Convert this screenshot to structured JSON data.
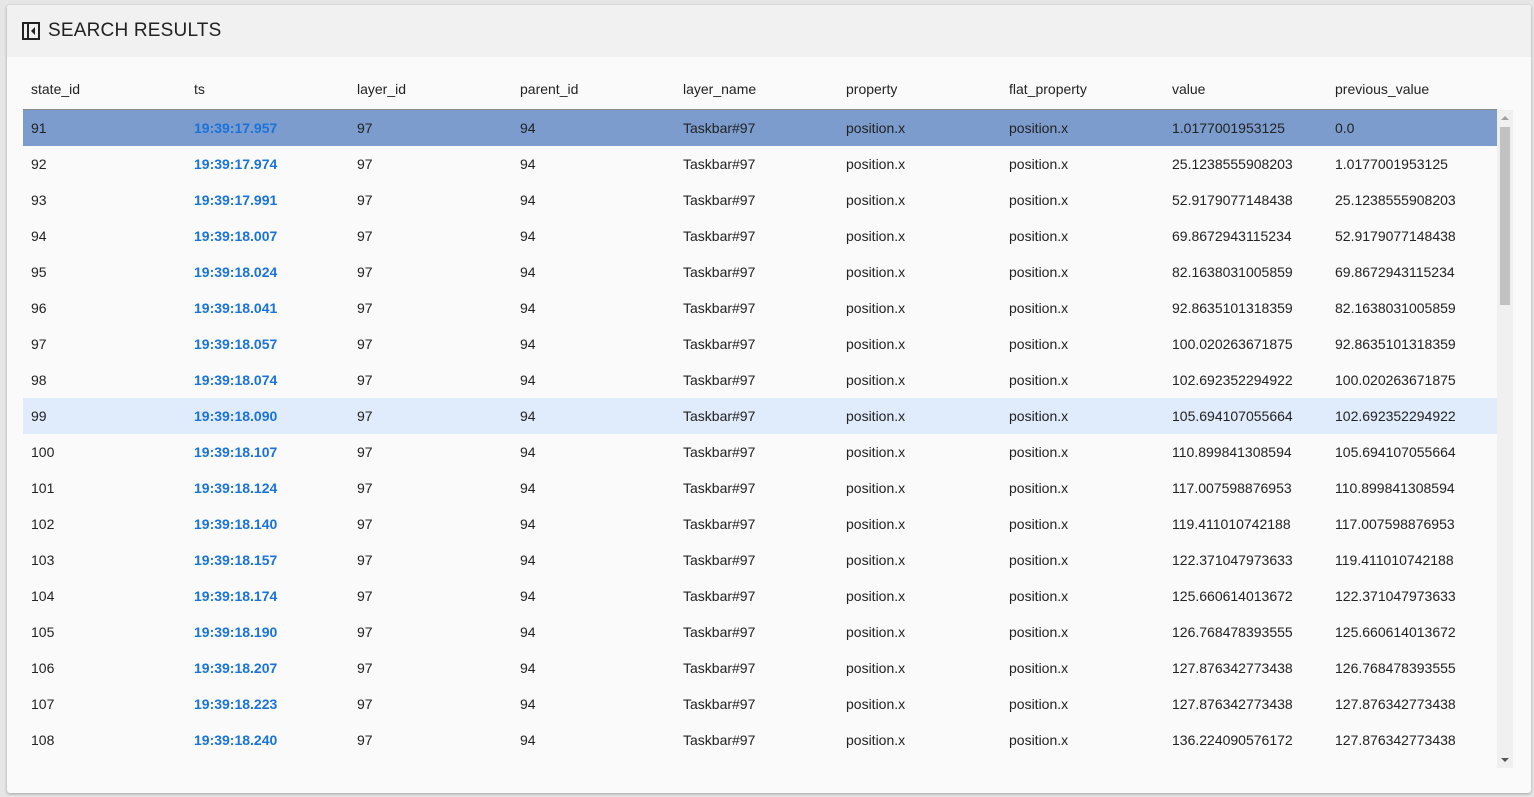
{
  "panel": {
    "title": "SEARCH RESULTS",
    "icon": "collapse-panel-icon"
  },
  "colors": {
    "selected_row": "#7b9ccd",
    "hover_row": "#e0ebfc",
    "link": "#1a73d9"
  },
  "columns": [
    "state_id",
    "ts",
    "layer_id",
    "parent_id",
    "layer_name",
    "property",
    "flat_property",
    "value",
    "previous_value"
  ],
  "selected_index": 0,
  "hover_index": 8,
  "rows": [
    [
      "91",
      "19:39:17.957",
      "97",
      "94",
      "Taskbar#97",
      "position.x",
      "position.x",
      "1.0177001953125",
      "0.0"
    ],
    [
      "92",
      "19:39:17.974",
      "97",
      "94",
      "Taskbar#97",
      "position.x",
      "position.x",
      "25.1238555908203",
      "1.0177001953125"
    ],
    [
      "93",
      "19:39:17.991",
      "97",
      "94",
      "Taskbar#97",
      "position.x",
      "position.x",
      "52.9179077148438",
      "25.1238555908203"
    ],
    [
      "94",
      "19:39:18.007",
      "97",
      "94",
      "Taskbar#97",
      "position.x",
      "position.x",
      "69.8672943115234",
      "52.9179077148438"
    ],
    [
      "95",
      "19:39:18.024",
      "97",
      "94",
      "Taskbar#97",
      "position.x",
      "position.x",
      "82.1638031005859",
      "69.8672943115234"
    ],
    [
      "96",
      "19:39:18.041",
      "97",
      "94",
      "Taskbar#97",
      "position.x",
      "position.x",
      "92.8635101318359",
      "82.1638031005859"
    ],
    [
      "97",
      "19:39:18.057",
      "97",
      "94",
      "Taskbar#97",
      "position.x",
      "position.x",
      "100.020263671875",
      "92.8635101318359"
    ],
    [
      "98",
      "19:39:18.074",
      "97",
      "94",
      "Taskbar#97",
      "position.x",
      "position.x",
      "102.692352294922",
      "100.020263671875"
    ],
    [
      "99",
      "19:39:18.090",
      "97",
      "94",
      "Taskbar#97",
      "position.x",
      "position.x",
      "105.694107055664",
      "102.692352294922"
    ],
    [
      "100",
      "19:39:18.107",
      "97",
      "94",
      "Taskbar#97",
      "position.x",
      "position.x",
      "110.899841308594",
      "105.694107055664"
    ],
    [
      "101",
      "19:39:18.124",
      "97",
      "94",
      "Taskbar#97",
      "position.x",
      "position.x",
      "117.007598876953",
      "110.899841308594"
    ],
    [
      "102",
      "19:39:18.140",
      "97",
      "94",
      "Taskbar#97",
      "position.x",
      "position.x",
      "119.411010742188",
      "117.007598876953"
    ],
    [
      "103",
      "19:39:18.157",
      "97",
      "94",
      "Taskbar#97",
      "position.x",
      "position.x",
      "122.371047973633",
      "119.411010742188"
    ],
    [
      "104",
      "19:39:18.174",
      "97",
      "94",
      "Taskbar#97",
      "position.x",
      "position.x",
      "125.660614013672",
      "122.371047973633"
    ],
    [
      "105",
      "19:39:18.190",
      "97",
      "94",
      "Taskbar#97",
      "position.x",
      "position.x",
      "126.768478393555",
      "125.660614013672"
    ],
    [
      "106",
      "19:39:18.207",
      "97",
      "94",
      "Taskbar#97",
      "position.x",
      "position.x",
      "127.876342773438",
      "126.768478393555"
    ],
    [
      "107",
      "19:39:18.223",
      "97",
      "94",
      "Taskbar#97",
      "position.x",
      "position.x",
      "127.876342773438",
      "127.876342773438"
    ],
    [
      "108",
      "19:39:18.240",
      "97",
      "94",
      "Taskbar#97",
      "position.x",
      "position.x",
      "136.224090576172",
      "127.876342773438"
    ]
  ]
}
